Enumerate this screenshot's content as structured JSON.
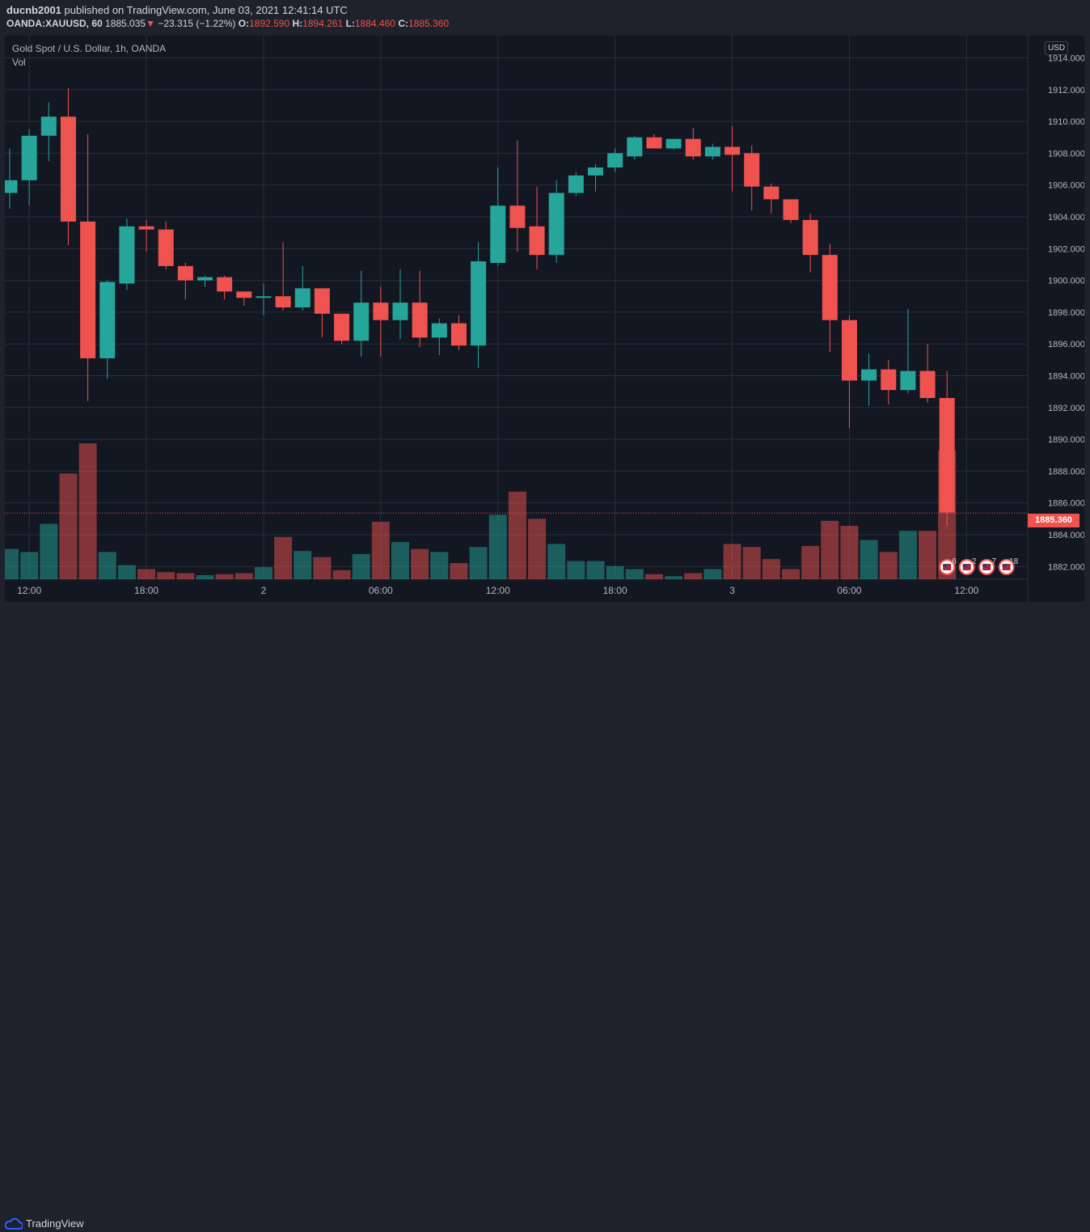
{
  "header": {
    "author": "ducnb2001",
    "published_text": "published on TradingView.com, June 03, 2021 12:41:14 UTC",
    "symbol": "OANDA:XAUUSD, 60",
    "last": "1885.035",
    "change_arrow": "▼",
    "change": "−23.315 (−1.22%)",
    "o_label": "O:",
    "o": "1892.590",
    "h_label": "H:",
    "h": "1894.261",
    "l_label": "L:",
    "l": "1884.460",
    "c_label": "C:",
    "c": "1885.360"
  },
  "legend": {
    "title": "Gold Spot / U.S. Dollar, 1h, OANDA",
    "vol": "Vol"
  },
  "currency_label": "USD",
  "current_price": "1885.360",
  "footer": {
    "brand": "TradingView",
    "logo_icon": "tradingview-cloud-icon"
  },
  "events": [
    {
      "icon": "us-flag-icon",
      "count": "6"
    },
    {
      "icon": "us-flag-icon",
      "count": "2"
    },
    {
      "icon": "us-flag-icon",
      "count": "7"
    },
    {
      "icon": "us-flag-icon",
      "count": "18"
    }
  ],
  "colors": {
    "up": "#26a69a",
    "down": "#ef5350",
    "background": "#131722",
    "grid": "#2a2e39"
  },
  "chart_data": {
    "type": "candlestick",
    "ylim": [
      1881.2,
      1915.4
    ],
    "y_ticks": [
      "1882.000",
      "1884.000",
      "1886.000",
      "1888.000",
      "1890.000",
      "1892.000",
      "1894.000",
      "1896.000",
      "1898.000",
      "1900.000",
      "1902.000",
      "1904.000",
      "1906.000",
      "1908.000",
      "1910.000",
      "1912.000",
      "1914.000"
    ],
    "x_ticks": [
      {
        "label": "12:00",
        "index": 1
      },
      {
        "label": "18:00",
        "index": 7
      },
      {
        "label": "2",
        "index": 13
      },
      {
        "label": "06:00",
        "index": 19
      },
      {
        "label": "12:00",
        "index": 25
      },
      {
        "label": "18:00",
        "index": 31
      },
      {
        "label": "3",
        "index": 37
      },
      {
        "label": "06:00",
        "index": 43
      },
      {
        "label": "12:00",
        "index": 49
      }
    ],
    "candles": [
      {
        "o": 1905.5,
        "h": 1908.3,
        "l": 1904.5,
        "c": 1906.3,
        "v": 0.3
      },
      {
        "o": 1906.3,
        "h": 1909.5,
        "l": 1904.7,
        "c": 1909.1,
        "v": 0.27
      },
      {
        "o": 1909.1,
        "h": 1911.2,
        "l": 1907.5,
        "c": 1910.3,
        "v": 0.55
      },
      {
        "o": 1910.3,
        "h": 1912.1,
        "l": 1902.2,
        "c": 1903.7,
        "v": 1.05
      },
      {
        "o": 1903.7,
        "h": 1909.2,
        "l": 1892.4,
        "c": 1895.1,
        "v": 1.35
      },
      {
        "o": 1895.1,
        "h": 1900.0,
        "l": 1893.8,
        "c": 1899.9,
        "v": 0.27
      },
      {
        "o": 1899.8,
        "h": 1903.9,
        "l": 1899.4,
        "c": 1903.4,
        "v": 0.14
      },
      {
        "o": 1903.4,
        "h": 1903.8,
        "l": 1901.8,
        "c": 1903.2,
        "v": 0.1
      },
      {
        "o": 1903.2,
        "h": 1903.7,
        "l": 1900.7,
        "c": 1900.9,
        "v": 0.07
      },
      {
        "o": 1900.9,
        "h": 1901.1,
        "l": 1898.8,
        "c": 1900.0,
        "v": 0.06
      },
      {
        "o": 1900.0,
        "h": 1900.3,
        "l": 1899.6,
        "c": 1900.2,
        "v": 0.04
      },
      {
        "o": 1900.2,
        "h": 1900.3,
        "l": 1898.8,
        "c": 1899.3,
        "v": 0.05
      },
      {
        "o": 1899.3,
        "h": 1899.3,
        "l": 1898.4,
        "c": 1898.9,
        "v": 0.06
      },
      {
        "o": 1898.9,
        "h": 1899.8,
        "l": 1897.8,
        "c": 1899.0,
        "v": 0.12
      },
      {
        "o": 1899.0,
        "h": 1902.4,
        "l": 1898.1,
        "c": 1898.3,
        "v": 0.42
      },
      {
        "o": 1898.3,
        "h": 1900.9,
        "l": 1898.1,
        "c": 1899.5,
        "v": 0.28
      },
      {
        "o": 1899.5,
        "h": 1899.5,
        "l": 1896.4,
        "c": 1897.9,
        "v": 0.22
      },
      {
        "o": 1897.9,
        "h": 1897.9,
        "l": 1896.0,
        "c": 1896.2,
        "v": 0.09
      },
      {
        "o": 1896.2,
        "h": 1900.6,
        "l": 1895.2,
        "c": 1898.6,
        "v": 0.25
      },
      {
        "o": 1898.6,
        "h": 1899.6,
        "l": 1895.2,
        "c": 1897.5,
        "v": 0.57
      },
      {
        "o": 1897.5,
        "h": 1900.7,
        "l": 1896.3,
        "c": 1898.6,
        "v": 0.37
      },
      {
        "o": 1898.6,
        "h": 1900.6,
        "l": 1895.8,
        "c": 1896.4,
        "v": 0.3
      },
      {
        "o": 1896.4,
        "h": 1897.6,
        "l": 1895.3,
        "c": 1897.3,
        "v": 0.27
      },
      {
        "o": 1897.3,
        "h": 1897.8,
        "l": 1895.6,
        "c": 1895.9,
        "v": 0.16
      },
      {
        "o": 1895.9,
        "h": 1902.4,
        "l": 1894.5,
        "c": 1901.2,
        "v": 0.32
      },
      {
        "o": 1901.1,
        "h": 1907.1,
        "l": 1900.9,
        "c": 1904.7,
        "v": 0.64
      },
      {
        "o": 1904.7,
        "h": 1908.8,
        "l": 1901.8,
        "c": 1903.3,
        "v": 0.87
      },
      {
        "o": 1903.4,
        "h": 1905.9,
        "l": 1900.7,
        "c": 1901.6,
        "v": 0.6
      },
      {
        "o": 1901.6,
        "h": 1906.3,
        "l": 1901.1,
        "c": 1905.5,
        "v": 0.35
      },
      {
        "o": 1905.5,
        "h": 1906.8,
        "l": 1905.3,
        "c": 1906.6,
        "v": 0.18
      },
      {
        "o": 1906.6,
        "h": 1907.3,
        "l": 1905.6,
        "c": 1907.1,
        "v": 0.18
      },
      {
        "o": 1907.1,
        "h": 1908.3,
        "l": 1906.8,
        "c": 1908.0,
        "v": 0.13
      },
      {
        "o": 1907.8,
        "h": 1909.1,
        "l": 1907.6,
        "c": 1909.0,
        "v": 0.1
      },
      {
        "o": 1909.0,
        "h": 1909.2,
        "l": 1908.3,
        "c": 1908.3,
        "v": 0.05
      },
      {
        "o": 1908.3,
        "h": 1908.9,
        "l": 1908.2,
        "c": 1908.9,
        "v": 0.03
      },
      {
        "o": 1908.9,
        "h": 1909.6,
        "l": 1907.6,
        "c": 1907.8,
        "v": 0.06
      },
      {
        "o": 1907.8,
        "h": 1908.6,
        "l": 1907.6,
        "c": 1908.4,
        "v": 0.1
      },
      {
        "o": 1908.4,
        "h": 1909.7,
        "l": 1905.6,
        "c": 1907.9,
        "v": 0.35
      },
      {
        "o": 1908.0,
        "h": 1908.5,
        "l": 1904.4,
        "c": 1905.9,
        "v": 0.32
      },
      {
        "o": 1905.9,
        "h": 1906.1,
        "l": 1904.2,
        "c": 1905.1,
        "v": 0.2
      },
      {
        "o": 1905.1,
        "h": 1905.1,
        "l": 1903.6,
        "c": 1903.8,
        "v": 0.1
      },
      {
        "o": 1903.8,
        "h": 1904.2,
        "l": 1900.5,
        "c": 1901.6,
        "v": 0.33
      },
      {
        "o": 1901.6,
        "h": 1902.3,
        "l": 1895.5,
        "c": 1897.5,
        "v": 0.58
      },
      {
        "o": 1897.5,
        "h": 1897.8,
        "l": 1890.7,
        "c": 1893.7,
        "v": 0.53
      },
      {
        "o": 1893.7,
        "h": 1895.4,
        "l": 1892.1,
        "c": 1894.4,
        "v": 0.39
      },
      {
        "o": 1894.4,
        "h": 1895.0,
        "l": 1892.2,
        "c": 1893.1,
        "v": 0.27
      },
      {
        "o": 1893.1,
        "h": 1898.2,
        "l": 1892.9,
        "c": 1894.3,
        "v": 0.48
      },
      {
        "o": 1894.3,
        "h": 1896.0,
        "l": 1892.3,
        "c": 1892.6,
        "v": 0.48
      },
      {
        "o": 1892.6,
        "h": 1894.3,
        "l": 1884.5,
        "c": 1885.4,
        "v": 1.28
      }
    ]
  }
}
